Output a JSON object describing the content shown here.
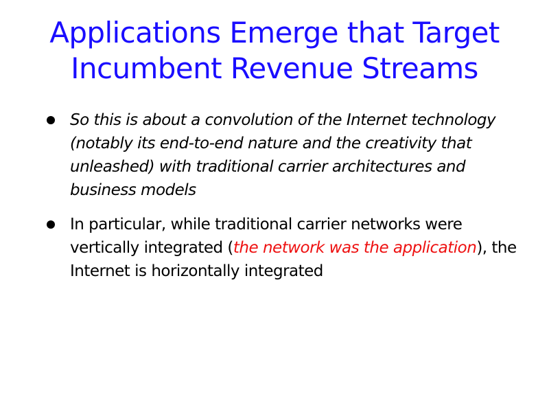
{
  "slide": {
    "title": "Applications Emerge that Target Incumbent Revenue Streams",
    "bullets": [
      {
        "text": "So this is about a convolution of the Internet technology (notably its end-to-end nature and the creativity that unleashed) with traditional carrier architectures and business models"
      },
      {
        "text_before": "In particular, while traditional carrier networks were vertically integrated (",
        "highlight": "the network was the application",
        "text_after": "), the Internet is horizontally integrated"
      }
    ]
  },
  "colors": {
    "title": "#1a0dff",
    "body_text": "#000000",
    "highlight": "#ee1111",
    "background": "#ffffff"
  }
}
